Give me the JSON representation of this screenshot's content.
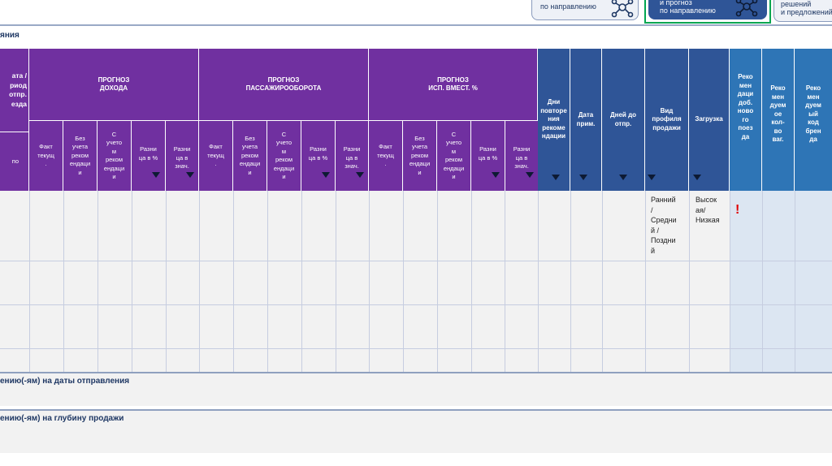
{
  "nav": {
    "btn1": "по направлению",
    "btn2_line1": "и прогноз",
    "btn2_line2": "по направлению",
    "btn3_line1": "решений",
    "btn3_line2": "и предложений"
  },
  "section_title": "яния",
  "table": {
    "first_col": {
      "header_lines": [
        "ата /",
        "риод",
        "отпр.",
        "езда"
      ],
      "sub": "по"
    },
    "groups": [
      {
        "title_line1": "ПРОГНОЗ",
        "title_line2": "ДОХОДА"
      },
      {
        "title_line1": "ПРОГНОЗ",
        "title_line2": "ПАССАЖИРООБОРОТА"
      },
      {
        "title_line1": "ПРОГНОЗ",
        "title_line2": "ИСП. ВМЕСТ. %"
      }
    ],
    "subcols": [
      [
        "Факт",
        "текущ",
        "."
      ],
      [
        "Без",
        "учета",
        "реком",
        "ендаци",
        "и"
      ],
      [
        "С",
        "учето",
        "м",
        "реком",
        "ендаци",
        "и"
      ],
      [
        "Разни",
        "ца в %"
      ],
      [
        "Разни",
        "ца в",
        "знач."
      ]
    ],
    "navy_cols": [
      [
        "Дни",
        "повторе",
        "ния",
        "рекоме",
        "ндации"
      ],
      [
        "Дата",
        "прим."
      ],
      [
        "Дней до",
        "отпр."
      ],
      [
        "Вид",
        "профиля",
        "продажи"
      ],
      [
        "Загрузка"
      ]
    ],
    "blue_cols": [
      [
        "Реко",
        "мен",
        "даци",
        "доб.",
        "ново",
        "го",
        "поез",
        "да"
      ],
      [
        "Реко",
        "мен",
        "дуем",
        "ое",
        "кол-",
        "во",
        "ваг."
      ],
      [
        "Реко",
        "мен",
        "дуем",
        "ый",
        "код",
        "брен",
        "да"
      ]
    ],
    "row1": {
      "profile": [
        "Ранний",
        "/",
        "Средни",
        "й /",
        "Поздни",
        "й"
      ],
      "load": [
        "Высок",
        "ая/",
        "Низкая"
      ],
      "alert": "!"
    }
  },
  "panels": {
    "dates": "ению(-ям) на даты отправления",
    "depth": "ению(-ям) на глубину продажи"
  },
  "colors": {
    "purple": "#7030a0",
    "navy": "#2f5597",
    "blue": "#2e75b6",
    "alert": "#e00000",
    "highlight": "#00a651"
  }
}
